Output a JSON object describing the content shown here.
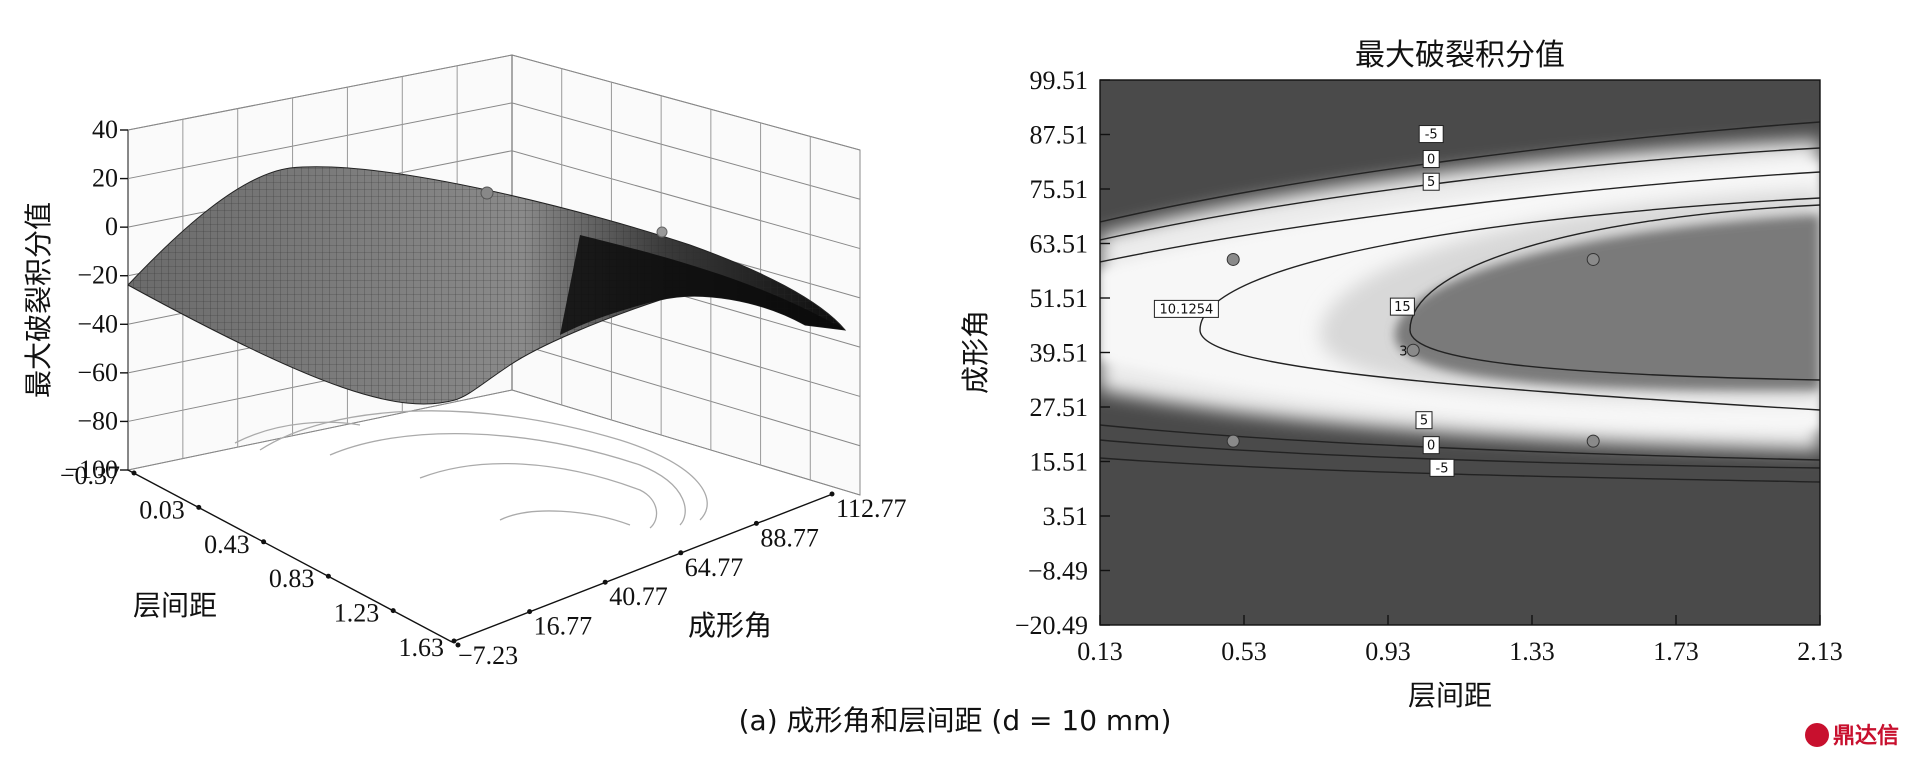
{
  "caption": "(a) 成形角和层间距 (d = 10 mm)",
  "watermark": "鼎达信",
  "chart_data": [
    {
      "type": "surface",
      "zlabel": "最大破裂积分值",
      "xlabel": "层间距",
      "ylabel": "成形角",
      "z_ticks": [
        "40",
        "20",
        "0",
        "−20",
        "−40",
        "−60",
        "−80",
        "−100"
      ],
      "x_ticks": [
        "−0.37",
        "0.03",
        "0.43",
        "0.83",
        "1.23",
        "1.63"
      ],
      "y_ticks": [
        "−7.23",
        "16.77",
        "40.77",
        "64.77",
        "88.77",
        "112.77"
      ],
      "zlim": [
        -100,
        40
      ],
      "grid": true
    },
    {
      "type": "contour",
      "title": "最大破裂积分值",
      "xlabel": "层间距",
      "ylabel": "成形角",
      "x_ticks": [
        "0.13",
        "0.53",
        "0.93",
        "1.33",
        "1.73",
        "2.13"
      ],
      "y_ticks": [
        "99.51",
        "87.51",
        "75.51",
        "63.51",
        "51.51",
        "39.51",
        "27.51",
        "15.51",
        "3.51",
        "−8.49",
        "−20.49"
      ],
      "xlim": [
        0.13,
        2.13
      ],
      "ylim": [
        -20.49,
        99.51
      ],
      "contour_levels": [
        {
          "label": "-5",
          "x": 1.05,
          "y": 87.5
        },
        {
          "label": "0",
          "x": 1.05,
          "y": 82
        },
        {
          "label": "5",
          "x": 1.05,
          "y": 77
        },
        {
          "label": "10.1254",
          "x": 0.37,
          "y": 49
        },
        {
          "label": "15",
          "x": 0.97,
          "y": 49.5
        },
        {
          "label": "5",
          "x": 1.03,
          "y": 24.5
        },
        {
          "label": "0",
          "x": 1.05,
          "y": 19
        },
        {
          "label": "-5",
          "x": 1.08,
          "y": 14
        }
      ],
      "design_points": [
        {
          "x": 0.5,
          "y": 60,
          "label": ""
        },
        {
          "x": 1.5,
          "y": 60,
          "label": ""
        },
        {
          "x": 1.0,
          "y": 40,
          "label": "3"
        },
        {
          "x": 0.5,
          "y": 20,
          "label": ""
        },
        {
          "x": 1.5,
          "y": 20,
          "label": ""
        }
      ]
    }
  ]
}
